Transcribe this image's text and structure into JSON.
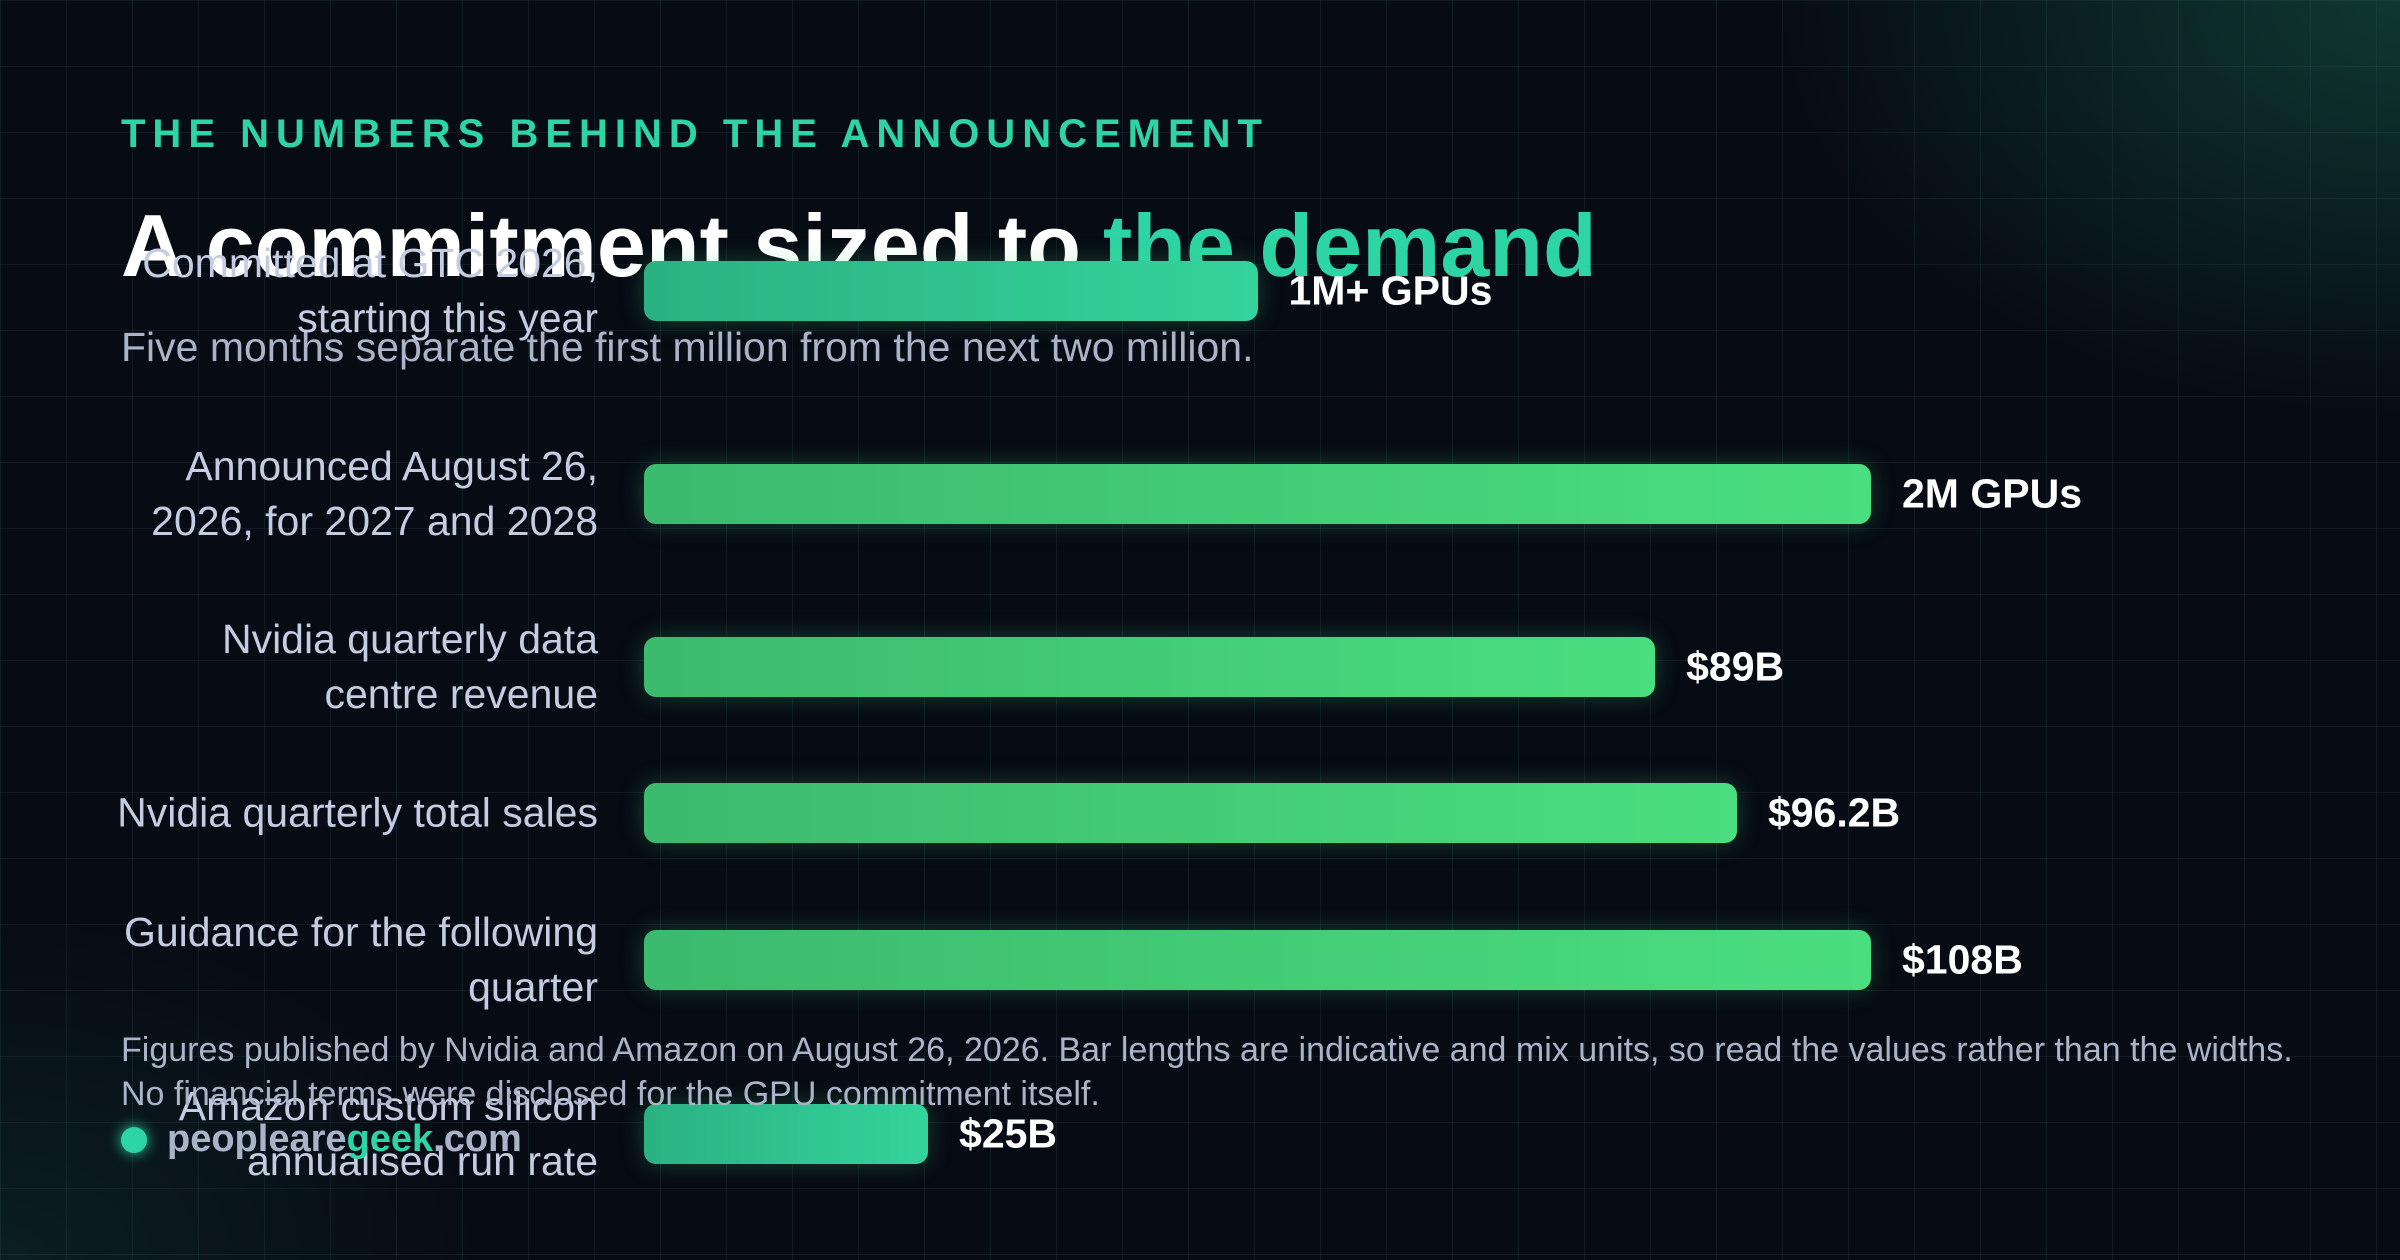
{
  "eyebrow": "THE NUMBERS BEHIND THE ANNOUNCEMENT",
  "title": {
    "lead": "A commitment sized to",
    "highlight": "the demand"
  },
  "subtitle": "Five months separate the first million from the next two million.",
  "chart_data": {
    "type": "bar",
    "categories": [
      "Committed at GTC 2026, starting this year",
      "Announced August 26, 2026, for 2027 and 2028",
      "Nvidia quarterly data centre revenue",
      "Nvidia quarterly total sales",
      "Guidance for the following quarter",
      "Amazon custom silicon annualised run rate"
    ],
    "values": [
      1,
      2,
      89,
      96.2,
      108,
      25
    ],
    "value_labels": [
      "1M+ GPUs",
      "2M GPUs",
      "$89B",
      "$96.2B",
      "$108B",
      "$25B"
    ],
    "colors": [
      "#34d39c",
      "#4ade80",
      "#4ade80",
      "#4ade80",
      "#4ade80",
      "#34d39c"
    ]
  },
  "footnote": "Figures published by Nvidia and Amazon on August 26, 2026. Bar lengths are indicative and mix units, so read the values rather than the widths. No financial terms were disclosed for the GPU commitment itself.",
  "site": {
    "lead": "peopleare",
    "highlight": "geek",
    "tail": ".com"
  }
}
